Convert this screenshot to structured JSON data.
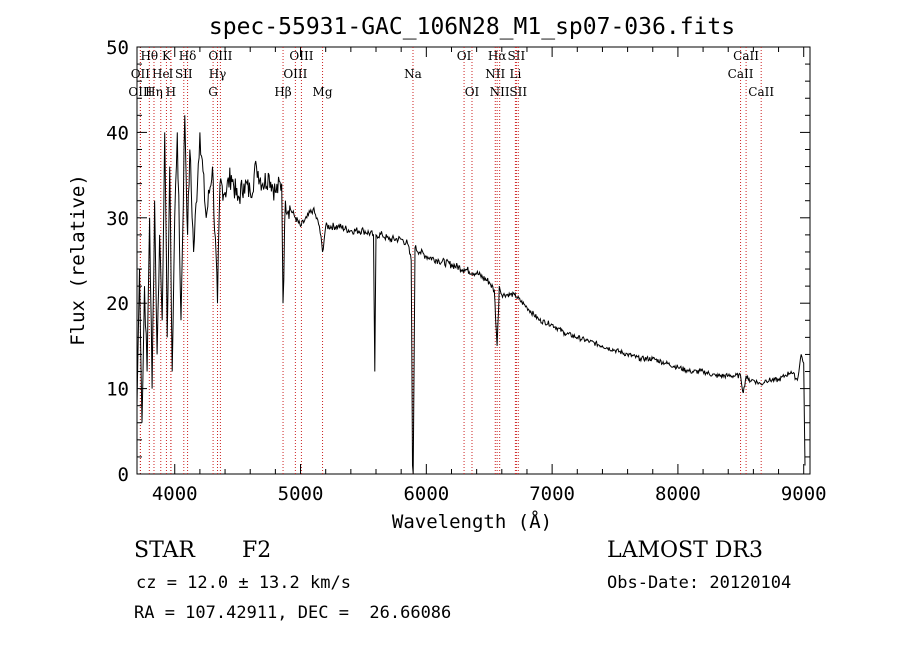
{
  "chart_data": {
    "type": "line",
    "title": "spec-55931-GAC_106N28_M1_sp07-036.fits",
    "xlabel": "Wavelength (Å)",
    "ylabel": "Flux (relative)",
    "xlim": [
      3700,
      9050
    ],
    "ylim": [
      0,
      50
    ],
    "xticks": [
      4000,
      5000,
      6000,
      7000,
      8000,
      9000
    ],
    "yticks": [
      0,
      10,
      20,
      30,
      40,
      50
    ],
    "series": [
      {
        "name": "flux",
        "x": [
          3700,
          3720,
          3740,
          3760,
          3780,
          3800,
          3820,
          3840,
          3860,
          3880,
          3900,
          3920,
          3940,
          3960,
          3980,
          4000,
          4020,
          4050,
          4080,
          4102,
          4120,
          4150,
          4200,
          4250,
          4300,
          4340,
          4360,
          4400,
          4450,
          4500,
          4550,
          4600,
          4650,
          4700,
          4750,
          4800,
          4850,
          4861,
          4880,
          4920,
          4960,
          5000,
          5050,
          5100,
          5150,
          5175,
          5200,
          5300,
          5400,
          5500,
          5580,
          5590,
          5600,
          5650,
          5700,
          5800,
          5850,
          5880,
          5890,
          5896,
          5910,
          5950,
          6000,
          6100,
          6200,
          6300,
          6400,
          6500,
          6540,
          6563,
          6580,
          6600,
          6700,
          6800,
          6900,
          7000,
          7100,
          7200,
          7300,
          7400,
          7500,
          7600,
          7700,
          7800,
          7900,
          8000,
          8100,
          8200,
          8300,
          8400,
          8498,
          8520,
          8542,
          8560,
          8600,
          8662,
          8700,
          8800,
          8850,
          8900,
          8950,
          8980,
          9000,
          9010
        ],
        "y": [
          8,
          24,
          6,
          22,
          12,
          30,
          10,
          32,
          14,
          28,
          18,
          40,
          16,
          36,
          12,
          30,
          40,
          18,
          42,
          28,
          38,
          26,
          40,
          30,
          36,
          20,
          34,
          33,
          35,
          32,
          34,
          33,
          36,
          34,
          35,
          33,
          34,
          20,
          32,
          31,
          30,
          29,
          30,
          31,
          29,
          26,
          29,
          29,
          28.5,
          28.5,
          28,
          12,
          28,
          28,
          27.5,
          27.5,
          27,
          25,
          1,
          0,
          26.5,
          26,
          25.5,
          25,
          24.5,
          24,
          23.5,
          22.5,
          21.5,
          15,
          22,
          21,
          21,
          19.5,
          18,
          17.5,
          16.5,
          16,
          15.5,
          15,
          14.5,
          14,
          13.5,
          13.5,
          13,
          12.5,
          12,
          12,
          11.5,
          11.5,
          11.5,
          9.5,
          11.5,
          11,
          11,
          10.5,
          11,
          11,
          11.5,
          12,
          11,
          14,
          13,
          1
        ]
      }
    ],
    "lines": [
      {
        "label": "Hθ",
        "x": 3798,
        "row": 1
      },
      {
        "label": "OII",
        "x": 3727,
        "row": 2
      },
      {
        "label": "OIII",
        "x": 3727,
        "row": 3
      },
      {
        "label": "He",
        "x": 3889,
        "row": 2
      },
      {
        "label": "Hη",
        "x": 3835,
        "row": 3
      },
      {
        "label": "K",
        "x": 3934,
        "row": 1
      },
      {
        "label": "H",
        "x": 3969,
        "row": 3
      },
      {
        "label": "I",
        "x": 3970,
        "row": 2
      },
      {
        "label": "Hδ",
        "x": 4102,
        "row": 1
      },
      {
        "label": "SII",
        "x": 4072,
        "row": 2
      },
      {
        "label": "OIII",
        "x": 4363,
        "row": 1
      },
      {
        "label": "Hγ",
        "x": 4340,
        "row": 2
      },
      {
        "label": "G",
        "x": 4305,
        "row": 3
      },
      {
        "label": "Hβ",
        "x": 4861,
        "row": 3
      },
      {
        "label": "OIII",
        "x": 5007,
        "row": 1
      },
      {
        "label": "OIII",
        "x": 4959,
        "row": 2
      },
      {
        "label": "Mg",
        "x": 5175,
        "row": 3
      },
      {
        "label": "Na",
        "x": 5894,
        "row": 2
      },
      {
        "label": "OI",
        "x": 6300,
        "row": 1
      },
      {
        "label": "OI",
        "x": 6363,
        "row": 3
      },
      {
        "label": "Hα",
        "x": 6563,
        "row": 1
      },
      {
        "label": "SII",
        "x": 6716,
        "row": 1
      },
      {
        "label": "NII",
        "x": 6548,
        "row": 2
      },
      {
        "label": "Li",
        "x": 6708,
        "row": 2
      },
      {
        "label": "NII",
        "x": 6583,
        "row": 3
      },
      {
        "label": "SII",
        "x": 6731,
        "row": 3
      },
      {
        "label": "CaII",
        "x": 8542,
        "row": 1
      },
      {
        "label": "CaII",
        "x": 8498,
        "row": 2
      },
      {
        "label": "CaII",
        "x": 8662,
        "row": 3
      }
    ]
  },
  "info": {
    "object_class": "STAR",
    "subclass": "F2",
    "survey": "LAMOST DR3",
    "redshift": "cz = 12.0 ± 13.2 km/s",
    "obs_date": "Obs-Date: 20120104",
    "coords": "RA = 107.42911, DEC =  26.66086"
  }
}
